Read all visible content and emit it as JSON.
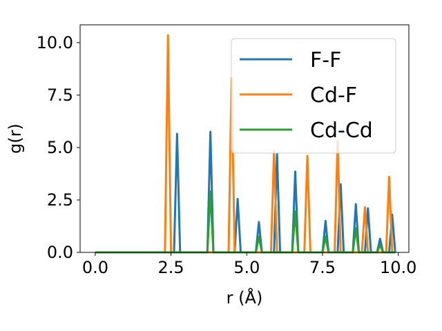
{
  "chart_data": {
    "type": "line",
    "xlabel": "r (Å)",
    "ylabel": "g(r)",
    "xlim": [
      -0.5,
      10.35
    ],
    "ylim": [
      0,
      10.85
    ],
    "xticks": [
      0.0,
      2.5,
      5.0,
      7.5,
      10.0
    ],
    "xtick_labels": [
      "0.0",
      "2.5",
      "5.0",
      "7.5",
      "10.0"
    ],
    "yticks": [
      0.0,
      2.5,
      5.0,
      7.5,
      10.0
    ],
    "ytick_labels": [
      "0.0",
      "2.5",
      "5.0",
      "7.5",
      "10.0"
    ],
    "grid": false,
    "legend_position": "top-right",
    "series": [
      {
        "name": "F-F",
        "color": "#1f77b4",
        "peaks": [
          [
            2.7,
            5.65
          ],
          [
            3.8,
            5.75
          ],
          [
            4.7,
            2.55
          ],
          [
            5.4,
            1.45
          ],
          [
            6.0,
            4.7
          ],
          [
            6.6,
            3.85
          ],
          [
            7.6,
            1.5
          ],
          [
            8.1,
            3.25
          ],
          [
            8.6,
            2.3
          ],
          [
            9.0,
            2.1
          ],
          [
            9.4,
            0.65
          ],
          [
            9.8,
            1.8
          ]
        ]
      },
      {
        "name": "Cd-F",
        "color": "#ff7f0e",
        "peaks": [
          [
            2.35,
            10.35
          ],
          [
            4.5,
            8.3
          ],
          [
            5.9,
            4.85
          ],
          [
            7.0,
            4.6
          ],
          [
            8.0,
            5.3
          ],
          [
            8.9,
            2.15
          ],
          [
            9.7,
            3.6
          ]
        ]
      },
      {
        "name": "Cd-Cd",
        "color": "#2ca02c",
        "peaks": [
          [
            3.8,
            2.9
          ],
          [
            5.4,
            0.75
          ],
          [
            6.6,
            1.95
          ],
          [
            7.6,
            0.75
          ],
          [
            8.6,
            1.15
          ],
          [
            9.4,
            0.35
          ]
        ]
      }
    ]
  }
}
